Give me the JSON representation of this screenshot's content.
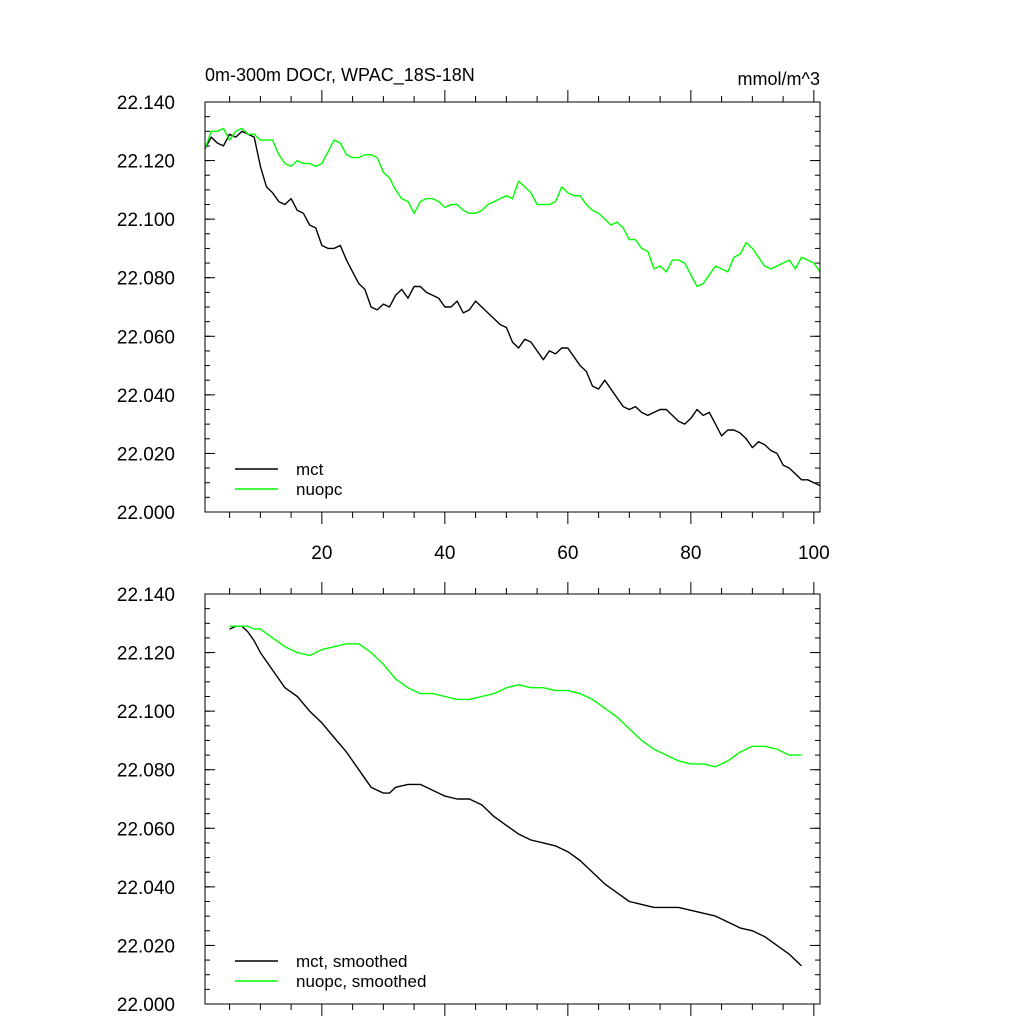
{
  "chart_data": [
    {
      "type": "line",
      "title": "0m-300m DOCr, WPAC_18S-18N",
      "units": "mmol/m^3",
      "xlabel": "",
      "ylabel": "",
      "xlim": [
        1,
        101
      ],
      "ylim": [
        22.0,
        22.14
      ],
      "xticks": [
        20,
        40,
        60,
        80,
        100
      ],
      "yticks": [
        "22.000",
        "22.020",
        "22.040",
        "22.060",
        "22.080",
        "22.100",
        "22.120",
        "22.140"
      ],
      "legend_position": "bottom-left",
      "series": [
        {
          "name": "mct",
          "color": "#000000",
          "x": [
            1,
            2,
            3,
            4,
            5,
            6,
            7,
            8,
            9,
            10,
            11,
            12,
            13,
            14,
            15,
            16,
            17,
            18,
            19,
            20,
            21,
            22,
            23,
            24,
            25,
            26,
            27,
            28,
            29,
            30,
            31,
            32,
            33,
            34,
            35,
            36,
            37,
            38,
            39,
            40,
            41,
            42,
            43,
            44,
            45,
            46,
            47,
            48,
            49,
            50,
            51,
            52,
            53,
            54,
            55,
            56,
            57,
            58,
            59,
            60,
            61,
            62,
            63,
            64,
            65,
            66,
            67,
            68,
            69,
            70,
            71,
            72,
            73,
            74,
            75,
            76,
            77,
            78,
            79,
            80,
            81,
            82,
            83,
            84,
            85,
            86,
            87,
            88,
            89,
            90,
            91,
            92,
            93,
            94,
            95,
            96,
            97,
            98,
            99,
            100,
            101
          ],
          "values": [
            22.124,
            22.128,
            22.126,
            22.125,
            22.129,
            22.128,
            22.13,
            22.129,
            22.128,
            22.118,
            22.111,
            22.109,
            22.106,
            22.105,
            22.107,
            22.103,
            22.102,
            22.098,
            22.097,
            22.091,
            22.09,
            22.09,
            22.091,
            22.086,
            22.082,
            22.078,
            22.076,
            22.07,
            22.069,
            22.071,
            22.07,
            22.074,
            22.076,
            22.073,
            22.077,
            22.077,
            22.075,
            22.074,
            22.073,
            22.07,
            22.07,
            22.072,
            22.068,
            22.069,
            22.072,
            22.07,
            22.068,
            22.066,
            22.064,
            22.063,
            22.058,
            22.056,
            22.059,
            22.058,
            22.055,
            22.052,
            22.055,
            22.054,
            22.056,
            22.056,
            22.053,
            22.05,
            22.048,
            22.043,
            22.042,
            22.045,
            22.042,
            22.039,
            22.036,
            22.035,
            22.036,
            22.034,
            22.033,
            22.034,
            22.035,
            22.035,
            22.033,
            22.031,
            22.03,
            22.032,
            22.035,
            22.033,
            22.034,
            22.03,
            22.026,
            22.028,
            22.028,
            22.027,
            22.025,
            22.022,
            22.024,
            22.023,
            22.021,
            22.02,
            22.016,
            22.015,
            22.013,
            22.011,
            22.011,
            22.01,
            22.009
          ]
        },
        {
          "name": "nuopc",
          "color": "#00ff00",
          "x": [
            1,
            2,
            3,
            4,
            5,
            6,
            7,
            8,
            9,
            10,
            11,
            12,
            13,
            14,
            15,
            16,
            17,
            18,
            19,
            20,
            21,
            22,
            23,
            24,
            25,
            26,
            27,
            28,
            29,
            30,
            31,
            32,
            33,
            34,
            35,
            36,
            37,
            38,
            39,
            40,
            41,
            42,
            43,
            44,
            45,
            46,
            47,
            48,
            49,
            50,
            51,
            52,
            53,
            54,
            55,
            56,
            57,
            58,
            59,
            60,
            61,
            62,
            63,
            64,
            65,
            66,
            67,
            68,
            69,
            70,
            71,
            72,
            73,
            74,
            75,
            76,
            77,
            78,
            79,
            80,
            81,
            82,
            83,
            84,
            85,
            86,
            87,
            88,
            89,
            90,
            91,
            92,
            93,
            94,
            95,
            96,
            97,
            98,
            99,
            100,
            101
          ],
          "values": [
            22.124,
            22.13,
            22.13,
            22.131,
            22.127,
            22.13,
            22.131,
            22.129,
            22.129,
            22.127,
            22.127,
            22.127,
            22.122,
            22.119,
            22.118,
            22.12,
            22.119,
            22.119,
            22.118,
            22.119,
            22.123,
            22.127,
            22.126,
            22.122,
            22.121,
            22.121,
            22.122,
            22.122,
            22.121,
            22.116,
            22.114,
            22.11,
            22.107,
            22.106,
            22.102,
            22.106,
            22.107,
            22.107,
            22.106,
            22.104,
            22.105,
            22.105,
            22.103,
            22.102,
            22.102,
            22.103,
            22.105,
            22.106,
            22.107,
            22.108,
            22.107,
            22.113,
            22.111,
            22.109,
            22.105,
            22.105,
            22.105,
            22.106,
            22.111,
            22.109,
            22.108,
            22.108,
            22.105,
            22.103,
            22.102,
            22.1,
            22.098,
            22.099,
            22.097,
            22.093,
            22.093,
            22.09,
            22.089,
            22.083,
            22.084,
            22.082,
            22.086,
            22.086,
            22.085,
            22.081,
            22.077,
            22.078,
            22.081,
            22.084,
            22.083,
            22.082,
            22.087,
            22.088,
            22.092,
            22.09,
            22.087,
            22.084,
            22.083,
            22.084,
            22.085,
            22.086,
            22.083,
            22.087,
            22.086,
            22.085,
            22.082
          ]
        }
      ]
    },
    {
      "type": "line",
      "title": "",
      "xlabel": "",
      "ylabel": "",
      "xlim": [
        1,
        101
      ],
      "ylim": [
        22.0,
        22.14
      ],
      "yticks": [
        "22.000",
        "22.020",
        "22.040",
        "22.060",
        "22.080",
        "22.100",
        "22.120",
        "22.140"
      ],
      "legend_position": "bottom-left",
      "series": [
        {
          "name": "mct, smoothed",
          "color": "#000000",
          "x": [
            5,
            6,
            7,
            8,
            9,
            10,
            12,
            14,
            16,
            18,
            20,
            22,
            24,
            26,
            28,
            29,
            30,
            31,
            32,
            34,
            36,
            38,
            40,
            42,
            44,
            46,
            48,
            50,
            52,
            54,
            56,
            58,
            60,
            62,
            64,
            66,
            68,
            70,
            72,
            74,
            76,
            78,
            80,
            82,
            84,
            86,
            88,
            90,
            92,
            94,
            96,
            98
          ],
          "values": [
            22.128,
            22.129,
            22.129,
            22.127,
            22.124,
            22.12,
            22.114,
            22.108,
            22.105,
            22.1,
            22.096,
            22.091,
            22.086,
            22.08,
            22.074,
            22.073,
            22.072,
            22.072,
            22.074,
            22.075,
            22.075,
            22.073,
            22.071,
            22.07,
            22.07,
            22.068,
            22.064,
            22.061,
            22.058,
            22.056,
            22.055,
            22.054,
            22.052,
            22.049,
            22.045,
            22.041,
            22.038,
            22.035,
            22.034,
            22.033,
            22.033,
            22.033,
            22.032,
            22.031,
            22.03,
            22.028,
            22.026,
            22.025,
            22.023,
            22.02,
            22.017,
            22.013
          ]
        },
        {
          "name": "nuopc, smoothed",
          "color": "#00ff00",
          "x": [
            5,
            6,
            7,
            8,
            9,
            10,
            12,
            14,
            16,
            18,
            20,
            22,
            24,
            26,
            28,
            30,
            32,
            34,
            36,
            38,
            40,
            42,
            44,
            46,
            48,
            50,
            52,
            54,
            56,
            58,
            60,
            62,
            64,
            66,
            68,
            70,
            72,
            74,
            76,
            78,
            80,
            82,
            84,
            86,
            88,
            90,
            92,
            94,
            96,
            98
          ],
          "values": [
            22.129,
            22.129,
            22.129,
            22.129,
            22.128,
            22.128,
            22.125,
            22.122,
            22.12,
            22.119,
            22.121,
            22.122,
            22.123,
            22.123,
            22.12,
            22.116,
            22.111,
            22.108,
            22.106,
            22.106,
            22.105,
            22.104,
            22.104,
            22.105,
            22.106,
            22.108,
            22.109,
            22.108,
            22.108,
            22.107,
            22.107,
            22.106,
            22.104,
            22.101,
            22.098,
            22.094,
            22.09,
            22.087,
            22.085,
            22.083,
            22.082,
            22.082,
            22.081,
            22.083,
            22.086,
            22.088,
            22.088,
            22.087,
            22.085,
            22.085
          ]
        }
      ]
    }
  ]
}
